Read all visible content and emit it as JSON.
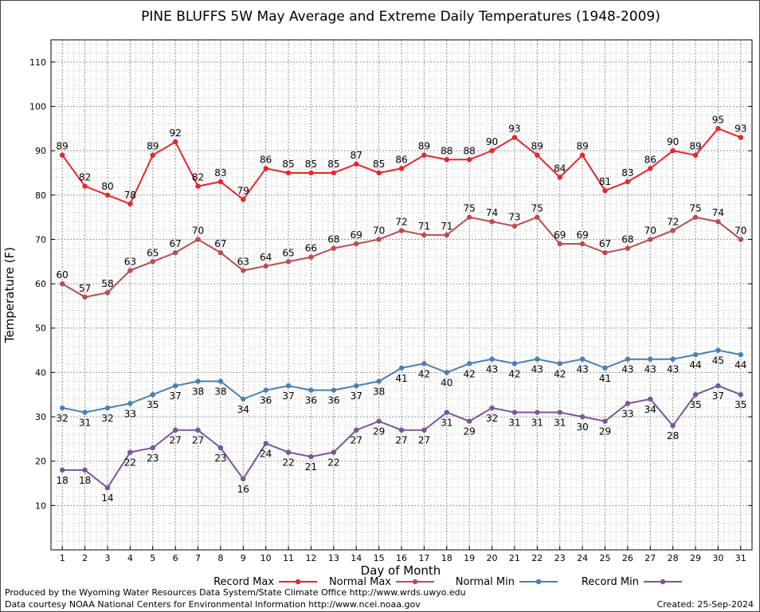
{
  "chart_data": {
    "type": "line",
    "title": "PINE BLUFFS 5W May Average and Extreme Daily Temperatures (1948-2009)",
    "xlabel": "Day of Month",
    "ylabel": "Temperature (F)",
    "x": [
      1,
      2,
      3,
      4,
      5,
      6,
      7,
      8,
      9,
      10,
      11,
      12,
      13,
      14,
      15,
      16,
      17,
      18,
      19,
      20,
      21,
      22,
      23,
      24,
      25,
      26,
      27,
      28,
      29,
      30,
      31
    ],
    "xlim": [
      0.5,
      31.5
    ],
    "ylim": [
      0,
      115
    ],
    "yticks": [
      10,
      20,
      30,
      40,
      50,
      60,
      70,
      80,
      90,
      100,
      110
    ],
    "grid": true,
    "legend_position": "bottom",
    "series": [
      {
        "name": "Record Max",
        "color": "#e8262b",
        "label_pos": "above",
        "values": [
          89,
          82,
          80,
          78,
          89,
          92,
          82,
          83,
          79,
          86,
          85,
          85,
          85,
          87,
          85,
          86,
          89,
          88,
          88,
          90,
          93,
          89,
          84,
          89,
          81,
          83,
          86,
          90,
          89,
          95,
          93
        ]
      },
      {
        "name": "Normal Max",
        "color": "#b94d50",
        "label_pos": "above",
        "values": [
          60,
          57,
          58,
          63,
          65,
          67,
          70,
          67,
          63,
          64,
          65,
          66,
          68,
          69,
          70,
          72,
          71,
          71,
          75,
          74,
          73,
          75,
          69,
          69,
          67,
          68,
          70,
          72,
          75,
          74,
          70
        ]
      },
      {
        "name": "Normal Min",
        "color": "#4a7fb5",
        "label_pos": "below",
        "values": [
          32,
          31,
          32,
          33,
          35,
          37,
          38,
          38,
          34,
          36,
          37,
          36,
          36,
          37,
          38,
          41,
          42,
          40,
          42,
          43,
          42,
          43,
          42,
          43,
          41,
          43,
          43,
          43,
          44,
          45,
          44
        ]
      },
      {
        "name": "Record Min",
        "color": "#7a559b",
        "label_pos": "below",
        "values": [
          18,
          18,
          14,
          22,
          23,
          27,
          27,
          23,
          16,
          24,
          22,
          21,
          22,
          27,
          29,
          27,
          27,
          31,
          29,
          32,
          31,
          31,
          31,
          30,
          29,
          33,
          34,
          28,
          35,
          37,
          35
        ]
      }
    ]
  },
  "footer": {
    "credit_line1": "Produced by the Wyoming Water Resources Data System/State Climate Office http://www.wrds.uwyo.edu",
    "credit_line2": "Data courtesy NOAA National Centers for Environmental Information http://www.ncei.noaa.gov",
    "created": "Created: 25-Sep-2024"
  }
}
